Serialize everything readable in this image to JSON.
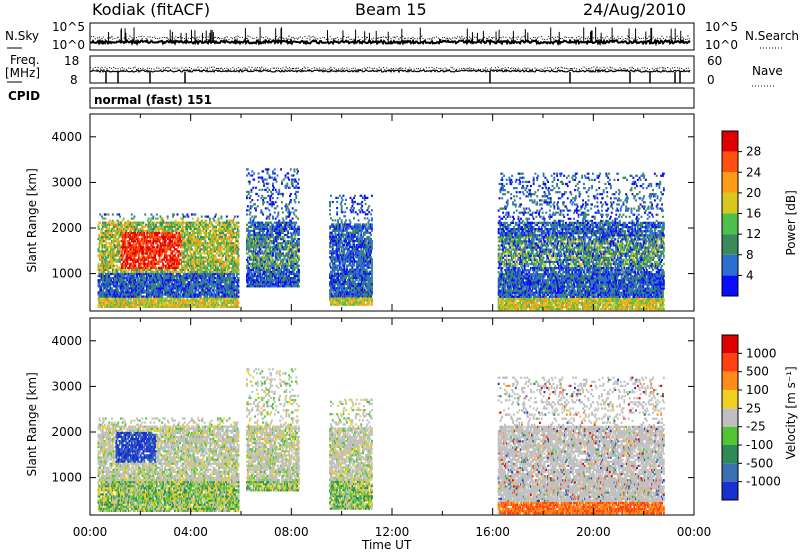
{
  "header": {
    "station": "Kodiak (fitACF)",
    "beam": "Beam 15",
    "date": "24/Aug/2010"
  },
  "strips": {
    "nsky_label": "N.Sky",
    "nsky_tick_hi": "10^5",
    "nsky_tick_lo": "10^0",
    "nsearch_label": "N.Search",
    "nsearch_tick_hi": "10^5",
    "nsearch_tick_lo": "10^0",
    "freq_label_1": "Freq.",
    "freq_label_2": "[MHz]",
    "freq_tick_hi": "18",
    "freq_tick_lo": "8",
    "nave_label": "Nave",
    "nave_tick_hi": "60",
    "nave_tick_lo": "0",
    "cpid_label": "CPID",
    "cpid_value": "normal (fast) 151"
  },
  "chart_data": [
    {
      "type": "heatmap",
      "title": "",
      "xlabel": "Time UT",
      "ylabel": "Slant Range [km]",
      "xticks": [
        "00:00",
        "04:00",
        "08:00",
        "12:00",
        "16:00",
        "20:00",
        "00:00"
      ],
      "xlim_hours": [
        0,
        24
      ],
      "yticks": [
        "1000",
        "2000",
        "3000",
        "4000"
      ],
      "ylim": [
        180,
        4500
      ],
      "colorbar": {
        "label": "Power [dB]",
        "ticks": [
          "4",
          "8",
          "12",
          "16",
          "20",
          "24",
          "28"
        ],
        "colors": [
          "#0a0aff",
          "#2d6fd0",
          "#3a8a5a",
          "#4dc04d",
          "#d7c81e",
          "#ff9b16",
          "#ff5010",
          "#e00000"
        ]
      },
      "regions": [
        {
          "t0": 0.3,
          "t1": 5.9,
          "r0": 250,
          "r1": 2300,
          "level": "high"
        },
        {
          "t0": 6.2,
          "t1": 8.3,
          "r0": 700,
          "r1": 3300,
          "level": "mid"
        },
        {
          "t0": 9.5,
          "t1": 11.2,
          "r0": 300,
          "r1": 2700,
          "level": "low"
        },
        {
          "t0": 16.2,
          "t1": 22.8,
          "r0": 200,
          "r1": 3200,
          "level": "mid"
        }
      ]
    },
    {
      "type": "heatmap",
      "title": "",
      "xlabel": "Time UT",
      "ylabel": "Slant Range [km]",
      "xticks": [
        "00:00",
        "04:00",
        "08:00",
        "12:00",
        "16:00",
        "20:00",
        "00:00"
      ],
      "xlim_hours": [
        0,
        24
      ],
      "yticks": [
        "1000",
        "2000",
        "3000",
        "4000"
      ],
      "ylim": [
        180,
        4500
      ],
      "colorbar": {
        "label": "Velocity [m s⁻¹]",
        "ticks": [
          "1000",
          "500",
          "100",
          "25",
          "-25",
          "-100",
          "-500",
          "-1000"
        ],
        "colors": [
          "#1a2fd0",
          "#3a6fb0",
          "#2e8b57",
          "#52c534",
          "#c0c0c0",
          "#f0d020",
          "#ff8c1a",
          "#ff4010",
          "#e00000"
        ]
      },
      "regions": [
        {
          "t0": 0.3,
          "t1": 5.9,
          "r0": 250,
          "r1": 2300,
          "level": "mixed"
        },
        {
          "t0": 6.2,
          "t1": 8.3,
          "r0": 700,
          "r1": 3400,
          "level": "mixed"
        },
        {
          "t0": 9.5,
          "t1": 11.2,
          "r0": 300,
          "r1": 2700,
          "level": "mixed"
        },
        {
          "t0": 16.2,
          "t1": 22.8,
          "r0": 200,
          "r1": 3200,
          "level": "grey"
        }
      ]
    }
  ]
}
